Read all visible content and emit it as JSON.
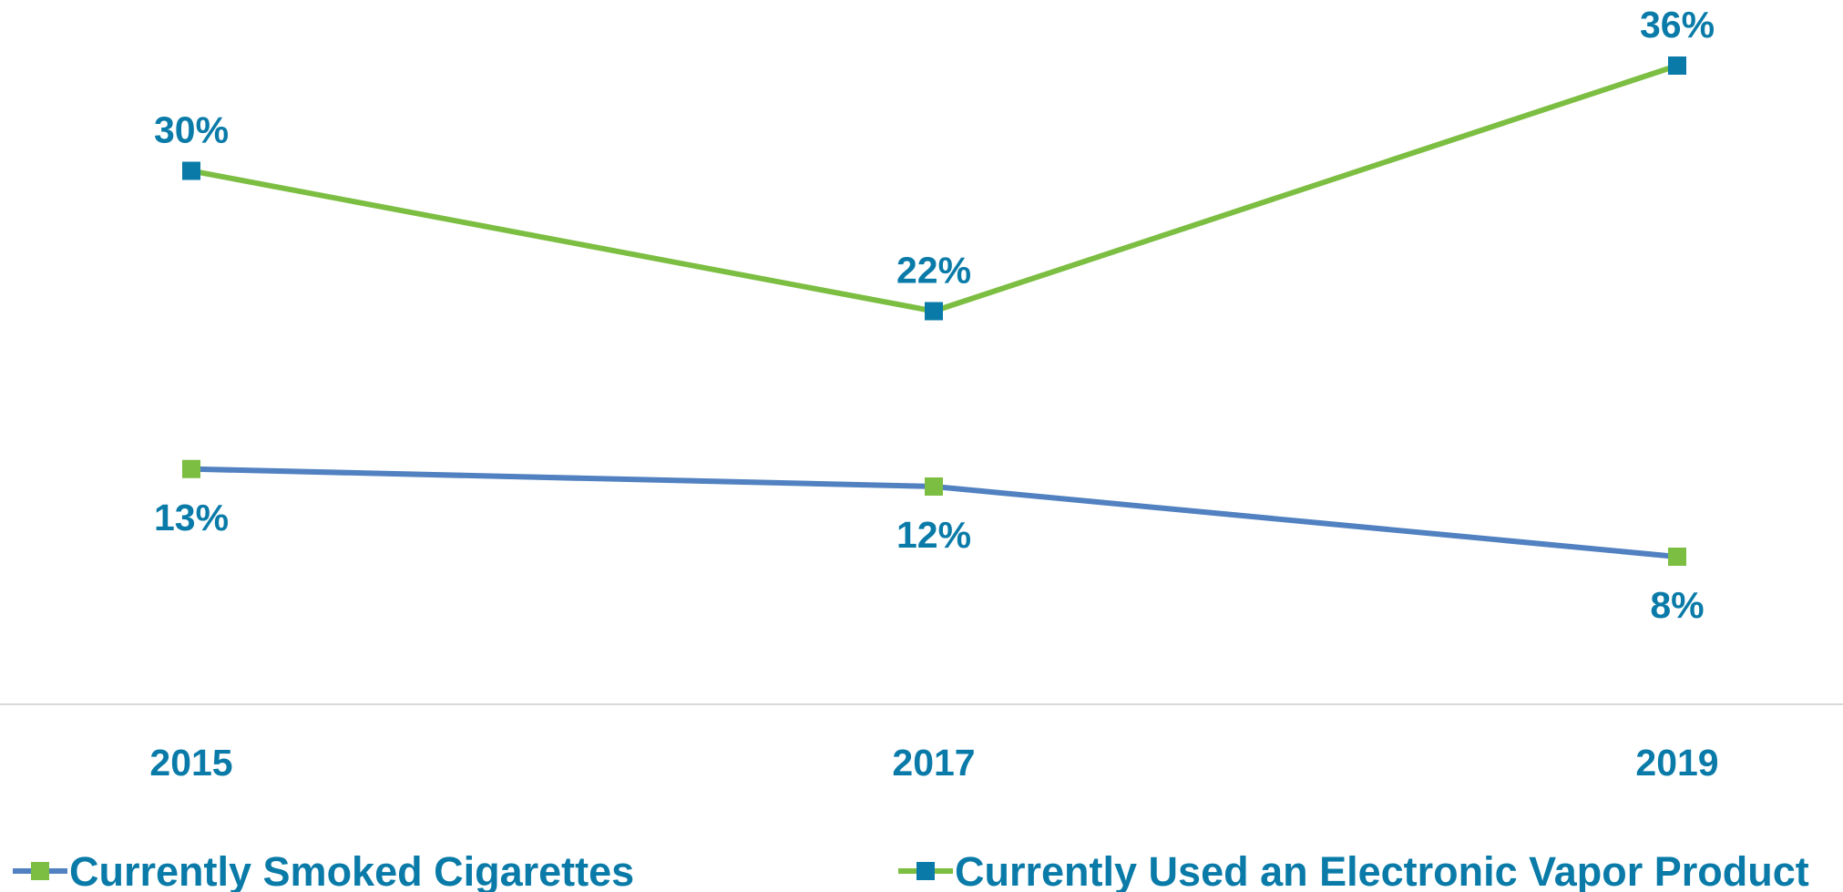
{
  "chart_data": {
    "type": "line",
    "categories": [
      "2015",
      "2017",
      "2019"
    ],
    "series": [
      {
        "name": "Currently Smoked Cigarettes",
        "values": [
          13,
          12,
          8
        ],
        "labels": [
          "13%",
          "12%",
          "8%"
        ],
        "line_color": "#5181C0",
        "marker_color": "#7CBE42",
        "label_position": "below"
      },
      {
        "name": "Currently Used an Electronic Vapor Product",
        "values": [
          30,
          22,
          36
        ],
        "labels": [
          "30%",
          "22%",
          "36%"
        ],
        "line_color": "#7CBE42",
        "marker_color": "#0A7BA8",
        "label_position": "above"
      }
    ],
    "ylim": [
      0,
      38
    ],
    "grid": false,
    "legend_placement": "bottom",
    "text_color": "#0A7BA8",
    "axis_color": "#D9D9D9"
  }
}
